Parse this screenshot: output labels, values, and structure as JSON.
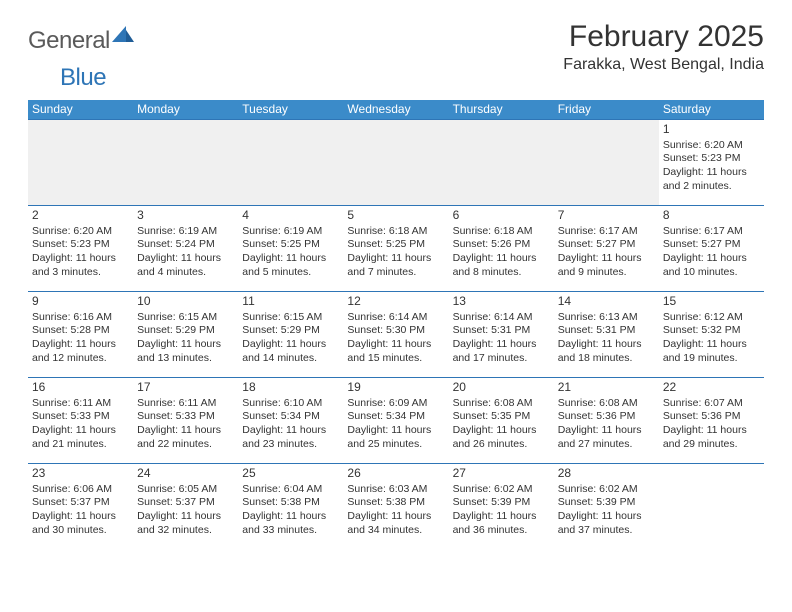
{
  "logo": {
    "general": "General",
    "blue": "Blue"
  },
  "title": "February 2025",
  "location": "Farakka, West Bengal, India",
  "colors": {
    "header_bar": "#3b8bc9",
    "border": "#2e75b6",
    "empty_bg": "#f0f0f0",
    "text": "#333333",
    "logo_gray": "#5a5a5a",
    "logo_blue": "#2e75b6"
  },
  "weekdays": [
    "Sunday",
    "Monday",
    "Tuesday",
    "Wednesday",
    "Thursday",
    "Friday",
    "Saturday"
  ],
  "weeks": [
    [
      null,
      null,
      null,
      null,
      null,
      null,
      {
        "n": "1",
        "sr": "Sunrise: 6:20 AM",
        "ss": "Sunset: 5:23 PM",
        "d1": "Daylight: 11 hours",
        "d2": "and 2 minutes."
      }
    ],
    [
      {
        "n": "2",
        "sr": "Sunrise: 6:20 AM",
        "ss": "Sunset: 5:23 PM",
        "d1": "Daylight: 11 hours",
        "d2": "and 3 minutes."
      },
      {
        "n": "3",
        "sr": "Sunrise: 6:19 AM",
        "ss": "Sunset: 5:24 PM",
        "d1": "Daylight: 11 hours",
        "d2": "and 4 minutes."
      },
      {
        "n": "4",
        "sr": "Sunrise: 6:19 AM",
        "ss": "Sunset: 5:25 PM",
        "d1": "Daylight: 11 hours",
        "d2": "and 5 minutes."
      },
      {
        "n": "5",
        "sr": "Sunrise: 6:18 AM",
        "ss": "Sunset: 5:25 PM",
        "d1": "Daylight: 11 hours",
        "d2": "and 7 minutes."
      },
      {
        "n": "6",
        "sr": "Sunrise: 6:18 AM",
        "ss": "Sunset: 5:26 PM",
        "d1": "Daylight: 11 hours",
        "d2": "and 8 minutes."
      },
      {
        "n": "7",
        "sr": "Sunrise: 6:17 AM",
        "ss": "Sunset: 5:27 PM",
        "d1": "Daylight: 11 hours",
        "d2": "and 9 minutes."
      },
      {
        "n": "8",
        "sr": "Sunrise: 6:17 AM",
        "ss": "Sunset: 5:27 PM",
        "d1": "Daylight: 11 hours",
        "d2": "and 10 minutes."
      }
    ],
    [
      {
        "n": "9",
        "sr": "Sunrise: 6:16 AM",
        "ss": "Sunset: 5:28 PM",
        "d1": "Daylight: 11 hours",
        "d2": "and 12 minutes."
      },
      {
        "n": "10",
        "sr": "Sunrise: 6:15 AM",
        "ss": "Sunset: 5:29 PM",
        "d1": "Daylight: 11 hours",
        "d2": "and 13 minutes."
      },
      {
        "n": "11",
        "sr": "Sunrise: 6:15 AM",
        "ss": "Sunset: 5:29 PM",
        "d1": "Daylight: 11 hours",
        "d2": "and 14 minutes."
      },
      {
        "n": "12",
        "sr": "Sunrise: 6:14 AM",
        "ss": "Sunset: 5:30 PM",
        "d1": "Daylight: 11 hours",
        "d2": "and 15 minutes."
      },
      {
        "n": "13",
        "sr": "Sunrise: 6:14 AM",
        "ss": "Sunset: 5:31 PM",
        "d1": "Daylight: 11 hours",
        "d2": "and 17 minutes."
      },
      {
        "n": "14",
        "sr": "Sunrise: 6:13 AM",
        "ss": "Sunset: 5:31 PM",
        "d1": "Daylight: 11 hours",
        "d2": "and 18 minutes."
      },
      {
        "n": "15",
        "sr": "Sunrise: 6:12 AM",
        "ss": "Sunset: 5:32 PM",
        "d1": "Daylight: 11 hours",
        "d2": "and 19 minutes."
      }
    ],
    [
      {
        "n": "16",
        "sr": "Sunrise: 6:11 AM",
        "ss": "Sunset: 5:33 PM",
        "d1": "Daylight: 11 hours",
        "d2": "and 21 minutes."
      },
      {
        "n": "17",
        "sr": "Sunrise: 6:11 AM",
        "ss": "Sunset: 5:33 PM",
        "d1": "Daylight: 11 hours",
        "d2": "and 22 minutes."
      },
      {
        "n": "18",
        "sr": "Sunrise: 6:10 AM",
        "ss": "Sunset: 5:34 PM",
        "d1": "Daylight: 11 hours",
        "d2": "and 23 minutes."
      },
      {
        "n": "19",
        "sr": "Sunrise: 6:09 AM",
        "ss": "Sunset: 5:34 PM",
        "d1": "Daylight: 11 hours",
        "d2": "and 25 minutes."
      },
      {
        "n": "20",
        "sr": "Sunrise: 6:08 AM",
        "ss": "Sunset: 5:35 PM",
        "d1": "Daylight: 11 hours",
        "d2": "and 26 minutes."
      },
      {
        "n": "21",
        "sr": "Sunrise: 6:08 AM",
        "ss": "Sunset: 5:36 PM",
        "d1": "Daylight: 11 hours",
        "d2": "and 27 minutes."
      },
      {
        "n": "22",
        "sr": "Sunrise: 6:07 AM",
        "ss": "Sunset: 5:36 PM",
        "d1": "Daylight: 11 hours",
        "d2": "and 29 minutes."
      }
    ],
    [
      {
        "n": "23",
        "sr": "Sunrise: 6:06 AM",
        "ss": "Sunset: 5:37 PM",
        "d1": "Daylight: 11 hours",
        "d2": "and 30 minutes."
      },
      {
        "n": "24",
        "sr": "Sunrise: 6:05 AM",
        "ss": "Sunset: 5:37 PM",
        "d1": "Daylight: 11 hours",
        "d2": "and 32 minutes."
      },
      {
        "n": "25",
        "sr": "Sunrise: 6:04 AM",
        "ss": "Sunset: 5:38 PM",
        "d1": "Daylight: 11 hours",
        "d2": "and 33 minutes."
      },
      {
        "n": "26",
        "sr": "Sunrise: 6:03 AM",
        "ss": "Sunset: 5:38 PM",
        "d1": "Daylight: 11 hours",
        "d2": "and 34 minutes."
      },
      {
        "n": "27",
        "sr": "Sunrise: 6:02 AM",
        "ss": "Sunset: 5:39 PM",
        "d1": "Daylight: 11 hours",
        "d2": "and 36 minutes."
      },
      {
        "n": "28",
        "sr": "Sunrise: 6:02 AM",
        "ss": "Sunset: 5:39 PM",
        "d1": "Daylight: 11 hours",
        "d2": "and 37 minutes."
      },
      null
    ]
  ]
}
